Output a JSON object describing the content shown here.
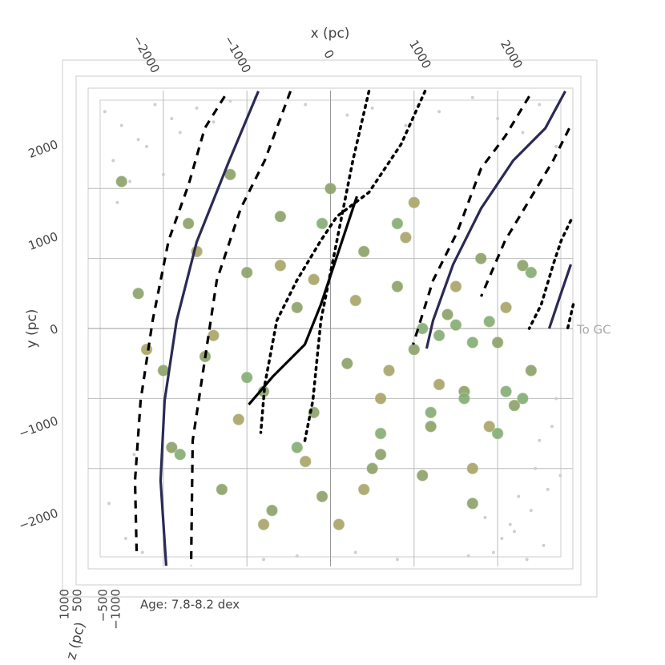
{
  "chart_data": {
    "type": "scatter3d",
    "x_label": "x (pc)",
    "y_label": "y (pc)",
    "z_label": "z (pc)",
    "annotations": [
      "To GC",
      "Age: 7.8-8.2 dex"
    ],
    "xlim": [
      -2900,
      2900
    ],
    "ylim": [
      -3400,
      3400
    ],
    "zlim": [
      -1200,
      1200
    ],
    "xticks": [
      {
        "value": -2000,
        "label": "−2000"
      },
      {
        "value": -1000,
        "label": "−1000"
      },
      0,
      1000,
      2000
    ],
    "yticks": [
      2000,
      1000,
      0,
      {
        "value": -1000,
        "label": "−1000"
      },
      {
        "value": -2000,
        "label": "−2000"
      }
    ],
    "zticks": [
      1000,
      500,
      {
        "value": -500,
        "label": "−500"
      },
      {
        "value": -1000,
        "label": "−1000"
      }
    ],
    "grid": true,
    "field_stars": {
      "color": "#cfcfcf",
      "x": [
        -2700,
        -2500,
        -2300,
        -2100,
        -1900,
        -2600,
        -2400,
        -2200,
        -2000,
        -1800,
        -1600,
        -1400,
        -1200,
        -900,
        -600,
        -300,
        200,
        500,
        900,
        1300,
        1700,
        2000,
        2300,
        2500,
        2700,
        2600,
        2400,
        2200,
        2750,
        2550,
        2350,
        2150,
        1950,
        -2650,
        -2450,
        -2250,
        -2550,
        -2350,
        2650,
        2450,
        2250,
        2050,
        1850,
        1650,
        2700,
        2500,
        -800,
        -400,
        300,
        800
      ],
      "y": [
        3100,
        2900,
        2700,
        3200,
        3000,
        2400,
        2100,
        2600,
        2200,
        2800,
        3150,
        2950,
        3250,
        3300,
        2980,
        3200,
        3050,
        3150,
        2900,
        3100,
        3300,
        3000,
        2800,
        3200,
        2600,
        -2300,
        -2600,
        -2900,
        -2100,
        -3100,
        -3300,
        -2800,
        -3200,
        -2500,
        -3000,
        -3200,
        1800,
        -1800,
        -1400,
        -2000,
        -2400,
        -3000,
        -2700,
        -3250,
        -1000,
        -1600,
        -3300,
        -3250,
        -3200,
        -3300
      ]
    },
    "cluster_groups": [
      {
        "color": "#8fa26c",
        "x": [
          -2300,
          -2000,
          -1700,
          -1500,
          -1200,
          -1000,
          -800,
          -600,
          -400,
          -200,
          0,
          200,
          400,
          600,
          800,
          1000,
          1200,
          1400,
          1600,
          1800,
          2000,
          2200,
          2400,
          -1900,
          -1300,
          -700,
          -100,
          500,
          1100,
          1700,
          2300,
          -2500
        ],
        "y": [
          500,
          -600,
          1500,
          -400,
          2200,
          800,
          -900,
          1600,
          300,
          -1200,
          2000,
          -500,
          1100,
          -1800,
          600,
          -300,
          -1400,
          200,
          -900,
          1000,
          -200,
          -1100,
          -600,
          -1700,
          -2300,
          -2600,
          -2400,
          -2000,
          -2100,
          -2500,
          900,
          2100
        ]
      },
      {
        "color": "#aba56a",
        "x": [
          -2200,
          -1600,
          -1100,
          -600,
          -300,
          100,
          300,
          700,
          900,
          1300,
          1500,
          1900,
          2100,
          -800,
          -1400,
          400,
          1000,
          -200,
          600,
          1700
        ],
        "y": [
          -300,
          1100,
          -1300,
          900,
          -1900,
          -2800,
          400,
          -600,
          1300,
          -800,
          600,
          -1400,
          300,
          -2800,
          -100,
          -2300,
          1800,
          700,
          -1000,
          -2000
        ]
      },
      {
        "color": "#86ae78",
        "x": [
          1100,
          1300,
          1500,
          1700,
          1900,
          2100,
          2300,
          800,
          600,
          -100,
          -400,
          -1800,
          1200,
          1600,
          2000,
          2400,
          -1000
        ],
        "y": [
          0,
          -100,
          50,
          -200,
          100,
          -900,
          -1000,
          1500,
          -1500,
          1500,
          -1700,
          -1800,
          -1200,
          -1000,
          -1500,
          800,
          -700
        ]
      }
    ],
    "marker_size": 7,
    "arms": [
      {
        "style": "solid",
        "color": "#2a2a55",
        "x": [
          -863,
          -1218,
          -1601,
          -1841,
          -1985,
          -2033,
          -1966
        ],
        "y": [
          3390,
          2380,
          1236,
          114,
          -1030,
          -2174,
          -3390
        ]
      },
      {
        "style": "solid",
        "color": "#2a2a55",
        "x": [
          2809,
          2570,
          2186,
          1802,
          1467,
          1227,
          1150
        ],
        "y": [
          3390,
          2860,
          2400,
          1716,
          915,
          114,
          -286
        ]
      },
      {
        "style": "solid",
        "color": "#2a2a55",
        "x": [
          2876,
          2713,
          2617
        ],
        "y": [
          915,
          343,
          0
        ]
      },
      {
        "style": "solid",
        "color": "#000000",
        "x": [
          316,
          77,
          -115,
          -307,
          -690,
          -978
        ],
        "y": [
          1888,
          1030,
          343,
          -229,
          -686,
          -1087
        ]
      },
      {
        "style": "dashed",
        "color": "#000000",
        "x": [
          -1266,
          -1505,
          -1697,
          -1937,
          -2128,
          -2272,
          -2339,
          -2320
        ],
        "y": [
          3318,
          2860,
          2059,
          1258,
          114,
          -1030,
          -2174,
          -3181
        ]
      },
      {
        "style": "dashed",
        "color": "#000000",
        "x": [
          -479,
          -786,
          -1074,
          -1361,
          -1505,
          -1649,
          -1668
        ],
        "y": [
          3390,
          2402,
          1716,
          686,
          -458,
          -1602,
          -3390
        ]
      },
      {
        "style": "dashed",
        "color": "#000000",
        "x": [
          2378,
          2090,
          1802,
          1515,
          1227,
          988
        ],
        "y": [
          3318,
          2746,
          2288,
          1373,
          686,
          -229
        ]
      },
      {
        "style": "dashed",
        "color": "#000000",
        "x": [
          2857,
          2665,
          2378,
          2090,
          1802
        ],
        "y": [
          2860,
          2402,
          1830,
          1258,
          457
        ]
      },
      {
        "style": "dotted",
        "color": "#000000",
        "x": [
          2876,
          2761,
          2665,
          2522,
          2378
        ],
        "y": [
          1545,
          1258,
          915,
          343,
          0
        ]
      },
      {
        "style": "dotted",
        "color": "#000000",
        "x": [
          2905,
          2838
        ],
        "y": [
          343,
          0
        ]
      },
      {
        "style": "dotted",
        "color": "#000000",
        "x": [
          460,
          268,
          77,
          -115,
          -211,
          -307
        ],
        "y": [
          3390,
          2402,
          1258,
          114,
          -1030,
          -1602
        ]
      },
      {
        "style": "dotted",
        "color": "#000000",
        "x": [
          1131,
          844,
          460,
          77,
          -115,
          -403,
          -642,
          -786,
          -834
        ],
        "y": [
          3390,
          2631,
          1945,
          1601,
          1258,
          686,
          114,
          -801,
          -1487
        ]
      }
    ]
  }
}
